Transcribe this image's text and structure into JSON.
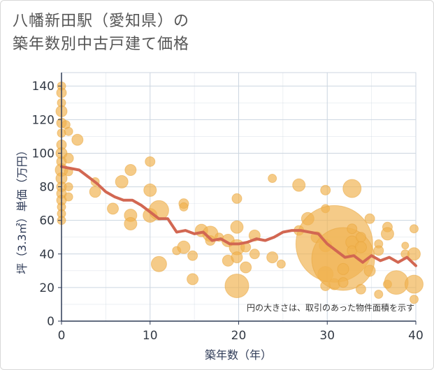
{
  "title_line1": "八幡新田駅（愛知県）の",
  "title_line2": "築年数別中古戸建て価格",
  "colors": {
    "bubble": "#f0b24f",
    "bubble_stroke": "#e8a43a",
    "line": "#d26752",
    "grid": "#ccd6e0",
    "axis": "#2f3b57"
  },
  "chart_data": {
    "type": "scatter",
    "title": "八幡新田駅（愛知県）の築年数別中古戸建て価格",
    "xlabel": "築年数（年）",
    "ylabel": "坪（3.3㎡）単価（万円）",
    "xlim": [
      0,
      40
    ],
    "ylim": [
      0,
      148
    ],
    "xticks": [
      0,
      10,
      20,
      30,
      40
    ],
    "yticks": [
      0,
      20,
      40,
      60,
      80,
      100,
      120,
      140
    ],
    "grid": true,
    "note": "円の大きさは、取引のあった物件面積を示す",
    "bubbles": [
      {
        "x": 0,
        "y": 140,
        "r": 6
      },
      {
        "x": 0,
        "y": 136,
        "r": 7
      },
      {
        "x": 0,
        "y": 130,
        "r": 6
      },
      {
        "x": 0,
        "y": 125,
        "r": 8
      },
      {
        "x": 0,
        "y": 118,
        "r": 7
      },
      {
        "x": 0,
        "y": 112,
        "r": 6
      },
      {
        "x": 0,
        "y": 105,
        "r": 7
      },
      {
        "x": 0,
        "y": 100,
        "r": 8
      },
      {
        "x": 0,
        "y": 95,
        "r": 7
      },
      {
        "x": 0,
        "y": 90,
        "r": 9
      },
      {
        "x": 0,
        "y": 85,
        "r": 8
      },
      {
        "x": 0,
        "y": 80,
        "r": 7
      },
      {
        "x": 0,
        "y": 76,
        "r": 7
      },
      {
        "x": 0,
        "y": 72,
        "r": 7
      },
      {
        "x": 0,
        "y": 68,
        "r": 6
      },
      {
        "x": 0,
        "y": 64,
        "r": 6
      },
      {
        "x": 0,
        "y": 60,
        "r": 6
      },
      {
        "x": 0.5,
        "y": 117,
        "r": 6
      },
      {
        "x": 0.8,
        "y": 113,
        "r": 6
      },
      {
        "x": 0.8,
        "y": 97,
        "r": 7
      },
      {
        "x": 0.8,
        "y": 89,
        "r": 6
      },
      {
        "x": 0.8,
        "y": 80,
        "r": 6
      },
      {
        "x": 0.8,
        "y": 74,
        "r": 6
      },
      {
        "x": 1.8,
        "y": 108,
        "r": 8
      },
      {
        "x": 3.8,
        "y": 83,
        "r": 6
      },
      {
        "x": 3.8,
        "y": 77,
        "r": 8
      },
      {
        "x": 5.8,
        "y": 67,
        "r": 8
      },
      {
        "x": 6.8,
        "y": 83,
        "r": 9
      },
      {
        "x": 7.8,
        "y": 90,
        "r": 8
      },
      {
        "x": 7.8,
        "y": 63,
        "r": 9
      },
      {
        "x": 7.8,
        "y": 58,
        "r": 9
      },
      {
        "x": 10,
        "y": 95,
        "r": 7
      },
      {
        "x": 10,
        "y": 78,
        "r": 9
      },
      {
        "x": 10,
        "y": 63,
        "r": 10
      },
      {
        "x": 11,
        "y": 66,
        "r": 14
      },
      {
        "x": 11,
        "y": 34,
        "r": 11
      },
      {
        "x": 13,
        "y": 42,
        "r": 6
      },
      {
        "x": 13.8,
        "y": 70,
        "r": 7
      },
      {
        "x": 13.8,
        "y": 68,
        "r": 6
      },
      {
        "x": 13.8,
        "y": 44,
        "r": 9
      },
      {
        "x": 14.8,
        "y": 39,
        "r": 7
      },
      {
        "x": 14.8,
        "y": 25,
        "r": 8
      },
      {
        "x": 15.8,
        "y": 54,
        "r": 9
      },
      {
        "x": 16.8,
        "y": 52,
        "r": 11
      },
      {
        "x": 16.8,
        "y": 48,
        "r": 7
      },
      {
        "x": 17.8,
        "y": 50,
        "r": 6
      },
      {
        "x": 18.8,
        "y": 48,
        "r": 9
      },
      {
        "x": 18.8,
        "y": 36,
        "r": 8
      },
      {
        "x": 19.8,
        "y": 73,
        "r": 7
      },
      {
        "x": 19.8,
        "y": 56,
        "r": 9
      },
      {
        "x": 19.8,
        "y": 44,
        "r": 11
      },
      {
        "x": 19.8,
        "y": 38,
        "r": 8
      },
      {
        "x": 19.8,
        "y": 21,
        "r": 17
      },
      {
        "x": 20.8,
        "y": 44,
        "r": 7
      },
      {
        "x": 20.8,
        "y": 32,
        "r": 8
      },
      {
        "x": 21.8,
        "y": 51,
        "r": 8
      },
      {
        "x": 21.8,
        "y": 40,
        "r": 7
      },
      {
        "x": 23.8,
        "y": 85,
        "r": 6
      },
      {
        "x": 23.8,
        "y": 38,
        "r": 8
      },
      {
        "x": 24.8,
        "y": 34,
        "r": 6
      },
      {
        "x": 26.8,
        "y": 81,
        "r": 9
      },
      {
        "x": 26.8,
        "y": 54,
        "r": 7
      },
      {
        "x": 27.8,
        "y": 61,
        "r": 9
      },
      {
        "x": 28.8,
        "y": 50,
        "r": 8
      },
      {
        "x": 29.8,
        "y": 78,
        "r": 7
      },
      {
        "x": 29.8,
        "y": 67,
        "r": 6
      },
      {
        "x": 29.8,
        "y": 45,
        "r": 9
      },
      {
        "x": 29.8,
        "y": 28,
        "r": 11
      },
      {
        "x": 29.8,
        "y": 21,
        "r": 7
      },
      {
        "x": 30.8,
        "y": 46,
        "r": 55
      },
      {
        "x": 30.8,
        "y": 22,
        "r": 8
      },
      {
        "x": 31.8,
        "y": 37,
        "r": 45
      },
      {
        "x": 31.8,
        "y": 31,
        "r": 8
      },
      {
        "x": 31.8,
        "y": 23,
        "r": 7
      },
      {
        "x": 32.8,
        "y": 79,
        "r": 13
      },
      {
        "x": 32.8,
        "y": 55,
        "r": 7
      },
      {
        "x": 32.8,
        "y": 47,
        "r": 9
      },
      {
        "x": 32.8,
        "y": 42,
        "r": 7
      },
      {
        "x": 33.8,
        "y": 50,
        "r": 7
      },
      {
        "x": 33.8,
        "y": 44,
        "r": 8
      },
      {
        "x": 33.8,
        "y": 19,
        "r": 7
      },
      {
        "x": 34.8,
        "y": 61,
        "r": 7
      },
      {
        "x": 34.8,
        "y": 30,
        "r": 8
      },
      {
        "x": 35.8,
        "y": 46,
        "r": 6
      },
      {
        "x": 35.8,
        "y": 42,
        "r": 7
      },
      {
        "x": 35.8,
        "y": 16,
        "r": 6
      },
      {
        "x": 36.8,
        "y": 56,
        "r": 7
      },
      {
        "x": 36.8,
        "y": 52,
        "r": 9
      },
      {
        "x": 36.8,
        "y": 22,
        "r": 6
      },
      {
        "x": 37.8,
        "y": 23,
        "r": 17
      },
      {
        "x": 38.8,
        "y": 45,
        "r": 5
      },
      {
        "x": 38.8,
        "y": 40,
        "r": 6
      },
      {
        "x": 39.8,
        "y": 55,
        "r": 6
      },
      {
        "x": 39.8,
        "y": 40,
        "r": 9
      },
      {
        "x": 39.8,
        "y": 22,
        "r": 13
      },
      {
        "x": 39.8,
        "y": 13,
        "r": 6
      }
    ],
    "series": [
      {
        "x": [
          0,
          1,
          2,
          3,
          4,
          5,
          6,
          7,
          8,
          9,
          10,
          11,
          12,
          13,
          14,
          15,
          16,
          17,
          18,
          19,
          20,
          21,
          22,
          23,
          24,
          25,
          26,
          27,
          28,
          29,
          30,
          31,
          32,
          33,
          34,
          35,
          36,
          37,
          38,
          39,
          40
        ],
        "values": [
          92,
          91,
          90,
          86,
          82,
          77,
          74,
          72,
          72,
          69,
          65,
          61,
          61,
          53,
          54,
          52,
          53,
          48,
          49,
          46,
          46,
          47,
          49,
          48,
          50,
          53,
          54,
          54,
          53,
          52,
          46,
          42,
          38,
          39,
          35,
          39,
          36,
          38,
          35,
          38,
          33
        ]
      }
    ]
  }
}
